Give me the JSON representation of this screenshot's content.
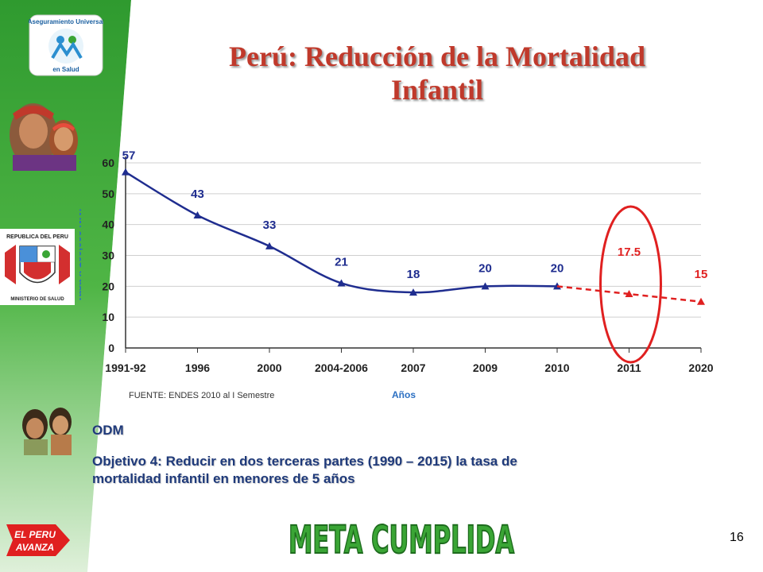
{
  "slide": {
    "title_line1": "Perú: Reducción de la Mortalidad",
    "title_line2": "Infantil",
    "odm_label": "ODM",
    "objective_line1": "Objetivo 4: Reducir en dos terceras partes (1990 – 2015) la tasa de",
    "objective_line2": "mortalidad infantil en menores de 5 años",
    "page_number": "16",
    "stamp_text": "META CUMPLIDA",
    "badge_line1": "EL PERU",
    "badge_line2": "AVANZA",
    "logo_line1": "Aseguramiento Universal",
    "logo_line2": "en Salud",
    "crest_top": "REPUBLICA DEL PERU",
    "crest_bottom": "MINISTERIO DE SALUD"
  },
  "colors": {
    "title": "#c0392b",
    "actual_line": "#1f2d8f",
    "projection_line": "#e02020",
    "highlight_ellipse": "#e02020",
    "sidebar_green": "#3aa535",
    "text_blue": "#1f3a7a"
  },
  "chart_data": {
    "type": "line",
    "categories": [
      "1991-92",
      "1996",
      "2000",
      "2004-2006",
      "2007",
      "2009",
      "2010",
      "2011",
      "2020"
    ],
    "series": [
      {
        "values": [
          57,
          43,
          33,
          21,
          18,
          20,
          20,
          null,
          null
        ]
      },
      {
        "values": [
          null,
          null,
          null,
          null,
          null,
          null,
          20,
          17.5,
          15
        ]
      }
    ],
    "data_labels": [
      "57",
      "43",
      "33",
      "21",
      "18",
      "20",
      "20",
      "17.5",
      "15"
    ],
    "highlight_category": "2011",
    "ylim": [
      0,
      60
    ],
    "yticks": [
      0,
      10,
      20,
      30,
      40,
      50,
      60
    ],
    "ylabel": "Tasa x 100,000 N.V.",
    "xlabel": "Años",
    "source": "FUENTE: ENDES 2010 al I Semestre",
    "grid": true
  }
}
